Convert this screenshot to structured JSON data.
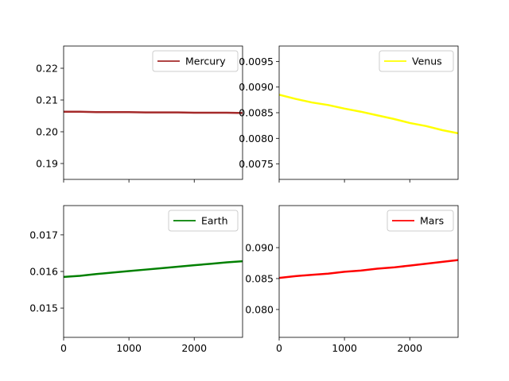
{
  "chart_data": [
    {
      "type": "line",
      "series": [
        {
          "name": "Mercury",
          "color": "#a52a2a",
          "x": [
            0,
            250,
            500,
            750,
            1000,
            1250,
            1500,
            1750,
            2000,
            2250,
            2500,
            2740
          ],
          "values": [
            0.2063,
            0.2063,
            0.2062,
            0.2062,
            0.2062,
            0.2061,
            0.2061,
            0.2061,
            0.206,
            0.206,
            0.206,
            0.2059
          ]
        }
      ],
      "xlim": [
        0,
        2740
      ],
      "ylim": [
        0.185,
        0.227
      ],
      "xticks": [
        0,
        1000,
        2000
      ],
      "xtick_labels": [
        "",
        "",
        ""
      ],
      "yticks": [
        0.19,
        0.2,
        0.21,
        0.22
      ],
      "ytick_labels": [
        "0.19",
        "0.20",
        "0.21",
        "0.22"
      ],
      "legend": "upper right",
      "grid": false,
      "title": "",
      "xlabel": "",
      "ylabel": ""
    },
    {
      "type": "line",
      "series": [
        {
          "name": "Venus",
          "color": "#ffff00",
          "x": [
            0,
            250,
            500,
            750,
            1000,
            1250,
            1500,
            1750,
            2000,
            2250,
            2500,
            2740
          ],
          "values": [
            0.00885,
            0.00877,
            0.0087,
            0.00865,
            0.00858,
            0.00852,
            0.00845,
            0.00838,
            0.0083,
            0.00824,
            0.00816,
            0.0081
          ]
        }
      ],
      "xlim": [
        0,
        2740
      ],
      "ylim": [
        0.0072,
        0.0098
      ],
      "xticks": [
        0,
        1000,
        2000
      ],
      "xtick_labels": [
        "",
        "",
        ""
      ],
      "yticks": [
        0.0075,
        0.008,
        0.0085,
        0.009,
        0.0095
      ],
      "ytick_labels": [
        "0.0075",
        "0.0080",
        "0.0085",
        "0.0090",
        "0.0095"
      ],
      "legend": "upper right",
      "grid": false,
      "title": "",
      "xlabel": "",
      "ylabel": ""
    },
    {
      "type": "line",
      "series": [
        {
          "name": "Earth",
          "color": "#008000",
          "x": [
            0,
            250,
            500,
            750,
            1000,
            1250,
            1500,
            1750,
            2000,
            2250,
            2500,
            2740
          ],
          "values": [
            0.01585,
            0.01588,
            0.01593,
            0.01597,
            0.01601,
            0.01605,
            0.01609,
            0.01613,
            0.01617,
            0.01621,
            0.01625,
            0.01628
          ]
        }
      ],
      "xlim": [
        0,
        2740
      ],
      "ylim": [
        0.0142,
        0.0178
      ],
      "xticks": [
        0,
        1000,
        2000
      ],
      "xtick_labels": [
        "0",
        "1000",
        "2000"
      ],
      "yticks": [
        0.015,
        0.016,
        0.017
      ],
      "ytick_labels": [
        "0.015",
        "0.016",
        "0.017"
      ],
      "legend": "upper right",
      "grid": false,
      "title": "",
      "xlabel": "",
      "ylabel": ""
    },
    {
      "type": "line",
      "series": [
        {
          "name": "Mars",
          "color": "#ff0000",
          "x": [
            0,
            250,
            500,
            750,
            1000,
            1250,
            1500,
            1750,
            2000,
            2250,
            2500,
            2740
          ],
          "values": [
            0.0851,
            0.0854,
            0.0856,
            0.0858,
            0.0861,
            0.0863,
            0.0866,
            0.0868,
            0.0871,
            0.0874,
            0.0877,
            0.088
          ]
        }
      ],
      "xlim": [
        0,
        2740
      ],
      "ylim": [
        0.0755,
        0.0968
      ],
      "xticks": [
        0,
        1000,
        2000
      ],
      "xtick_labels": [
        "0",
        "1000",
        "2000"
      ],
      "yticks": [
        0.08,
        0.085,
        0.09
      ],
      "ytick_labels": [
        "0.080",
        "0.085",
        "0.090"
      ],
      "legend": "upper right",
      "grid": false,
      "title": "",
      "xlabel": "",
      "ylabel": ""
    }
  ]
}
